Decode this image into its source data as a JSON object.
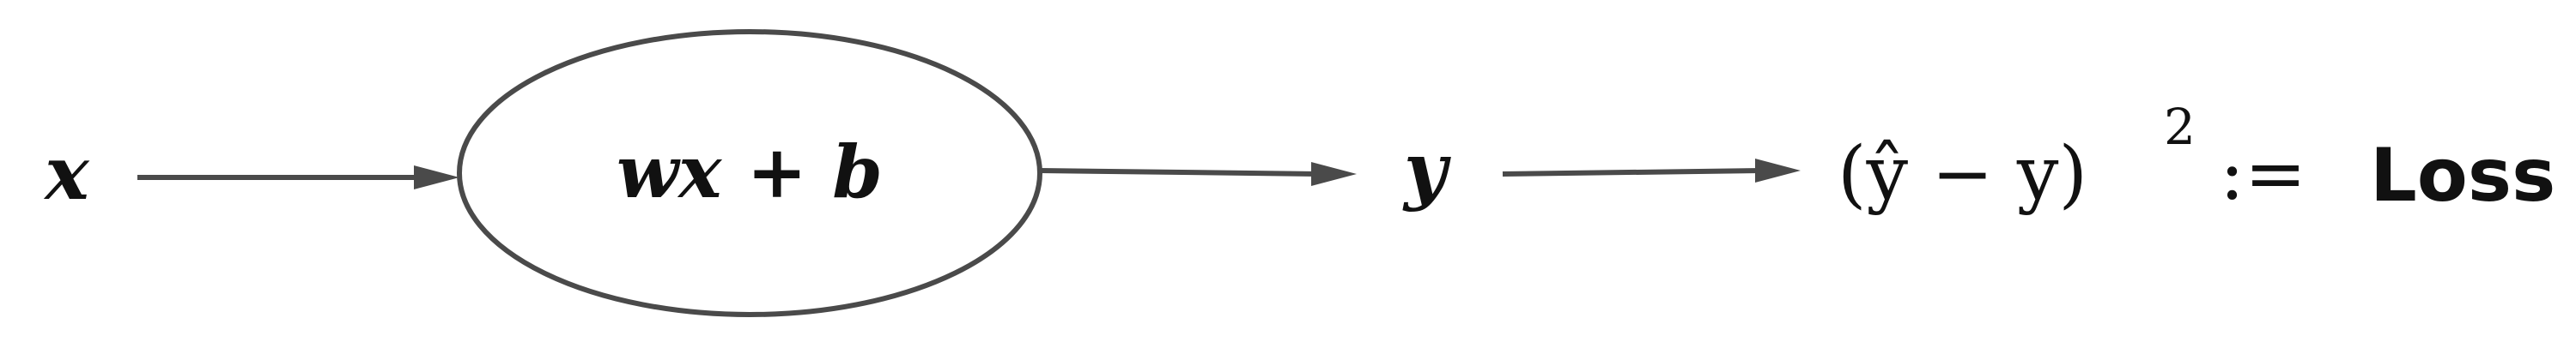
{
  "nodes": {
    "input": {
      "text": "x"
    },
    "linear": {
      "text": "wx + b"
    },
    "output": {
      "text": "y"
    },
    "loss": {
      "expression": "(ŷ − y)",
      "exponent": "2",
      "assign": ":=",
      "word": "Loss"
    }
  },
  "edges": [
    {
      "from": "x",
      "to": "wx + b"
    },
    {
      "from": "wx + b",
      "to": "y"
    },
    {
      "from": "y",
      "to": "(ŷ − y)² := Loss"
    }
  ]
}
